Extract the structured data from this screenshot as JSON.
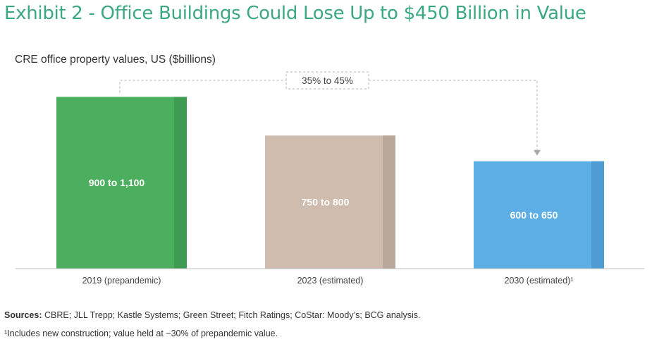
{
  "header": {
    "title": "Exhibit 2 - Office Buildings Could Lose Up to $450 Billion in Value"
  },
  "chart_data": {
    "type": "bar",
    "title": "Exhibit 2 - Office Buildings Could Lose Up to $450 Billion in Value",
    "subtitle": "CRE office property values, US ($billions)",
    "categories": [
      "2019 (prepandemic)",
      "2023 (estimated)",
      "2030 (estimated)¹"
    ],
    "ranges": [
      [
        900,
        1100
      ],
      [
        750,
        800
      ],
      [
        600,
        650
      ]
    ],
    "value_labels": [
      "900 to 1,100",
      "750 to 800",
      "600 to 650"
    ],
    "values": [
      1000,
      775,
      625
    ],
    "colors": [
      "#4caf5f",
      "#cfbcaf",
      "#5caee4"
    ],
    "shade_colors": [
      "#3f9b51",
      "#b9a79b",
      "#4f9cd2"
    ],
    "annotation": "35% to 45%",
    "ylim": [
      0,
      1010
    ],
    "grid": false,
    "legend": "none"
  },
  "footer": {
    "sources_label": "Sources:",
    "sources_text": " CBRE; JLL Trepp; Kastle Systems; Green Street; Fitch Ratings; CoStar: Moody’s; BCG analysis.",
    "footnote": "¹Includes new construction; value held at ~30% of prepandemic value."
  }
}
